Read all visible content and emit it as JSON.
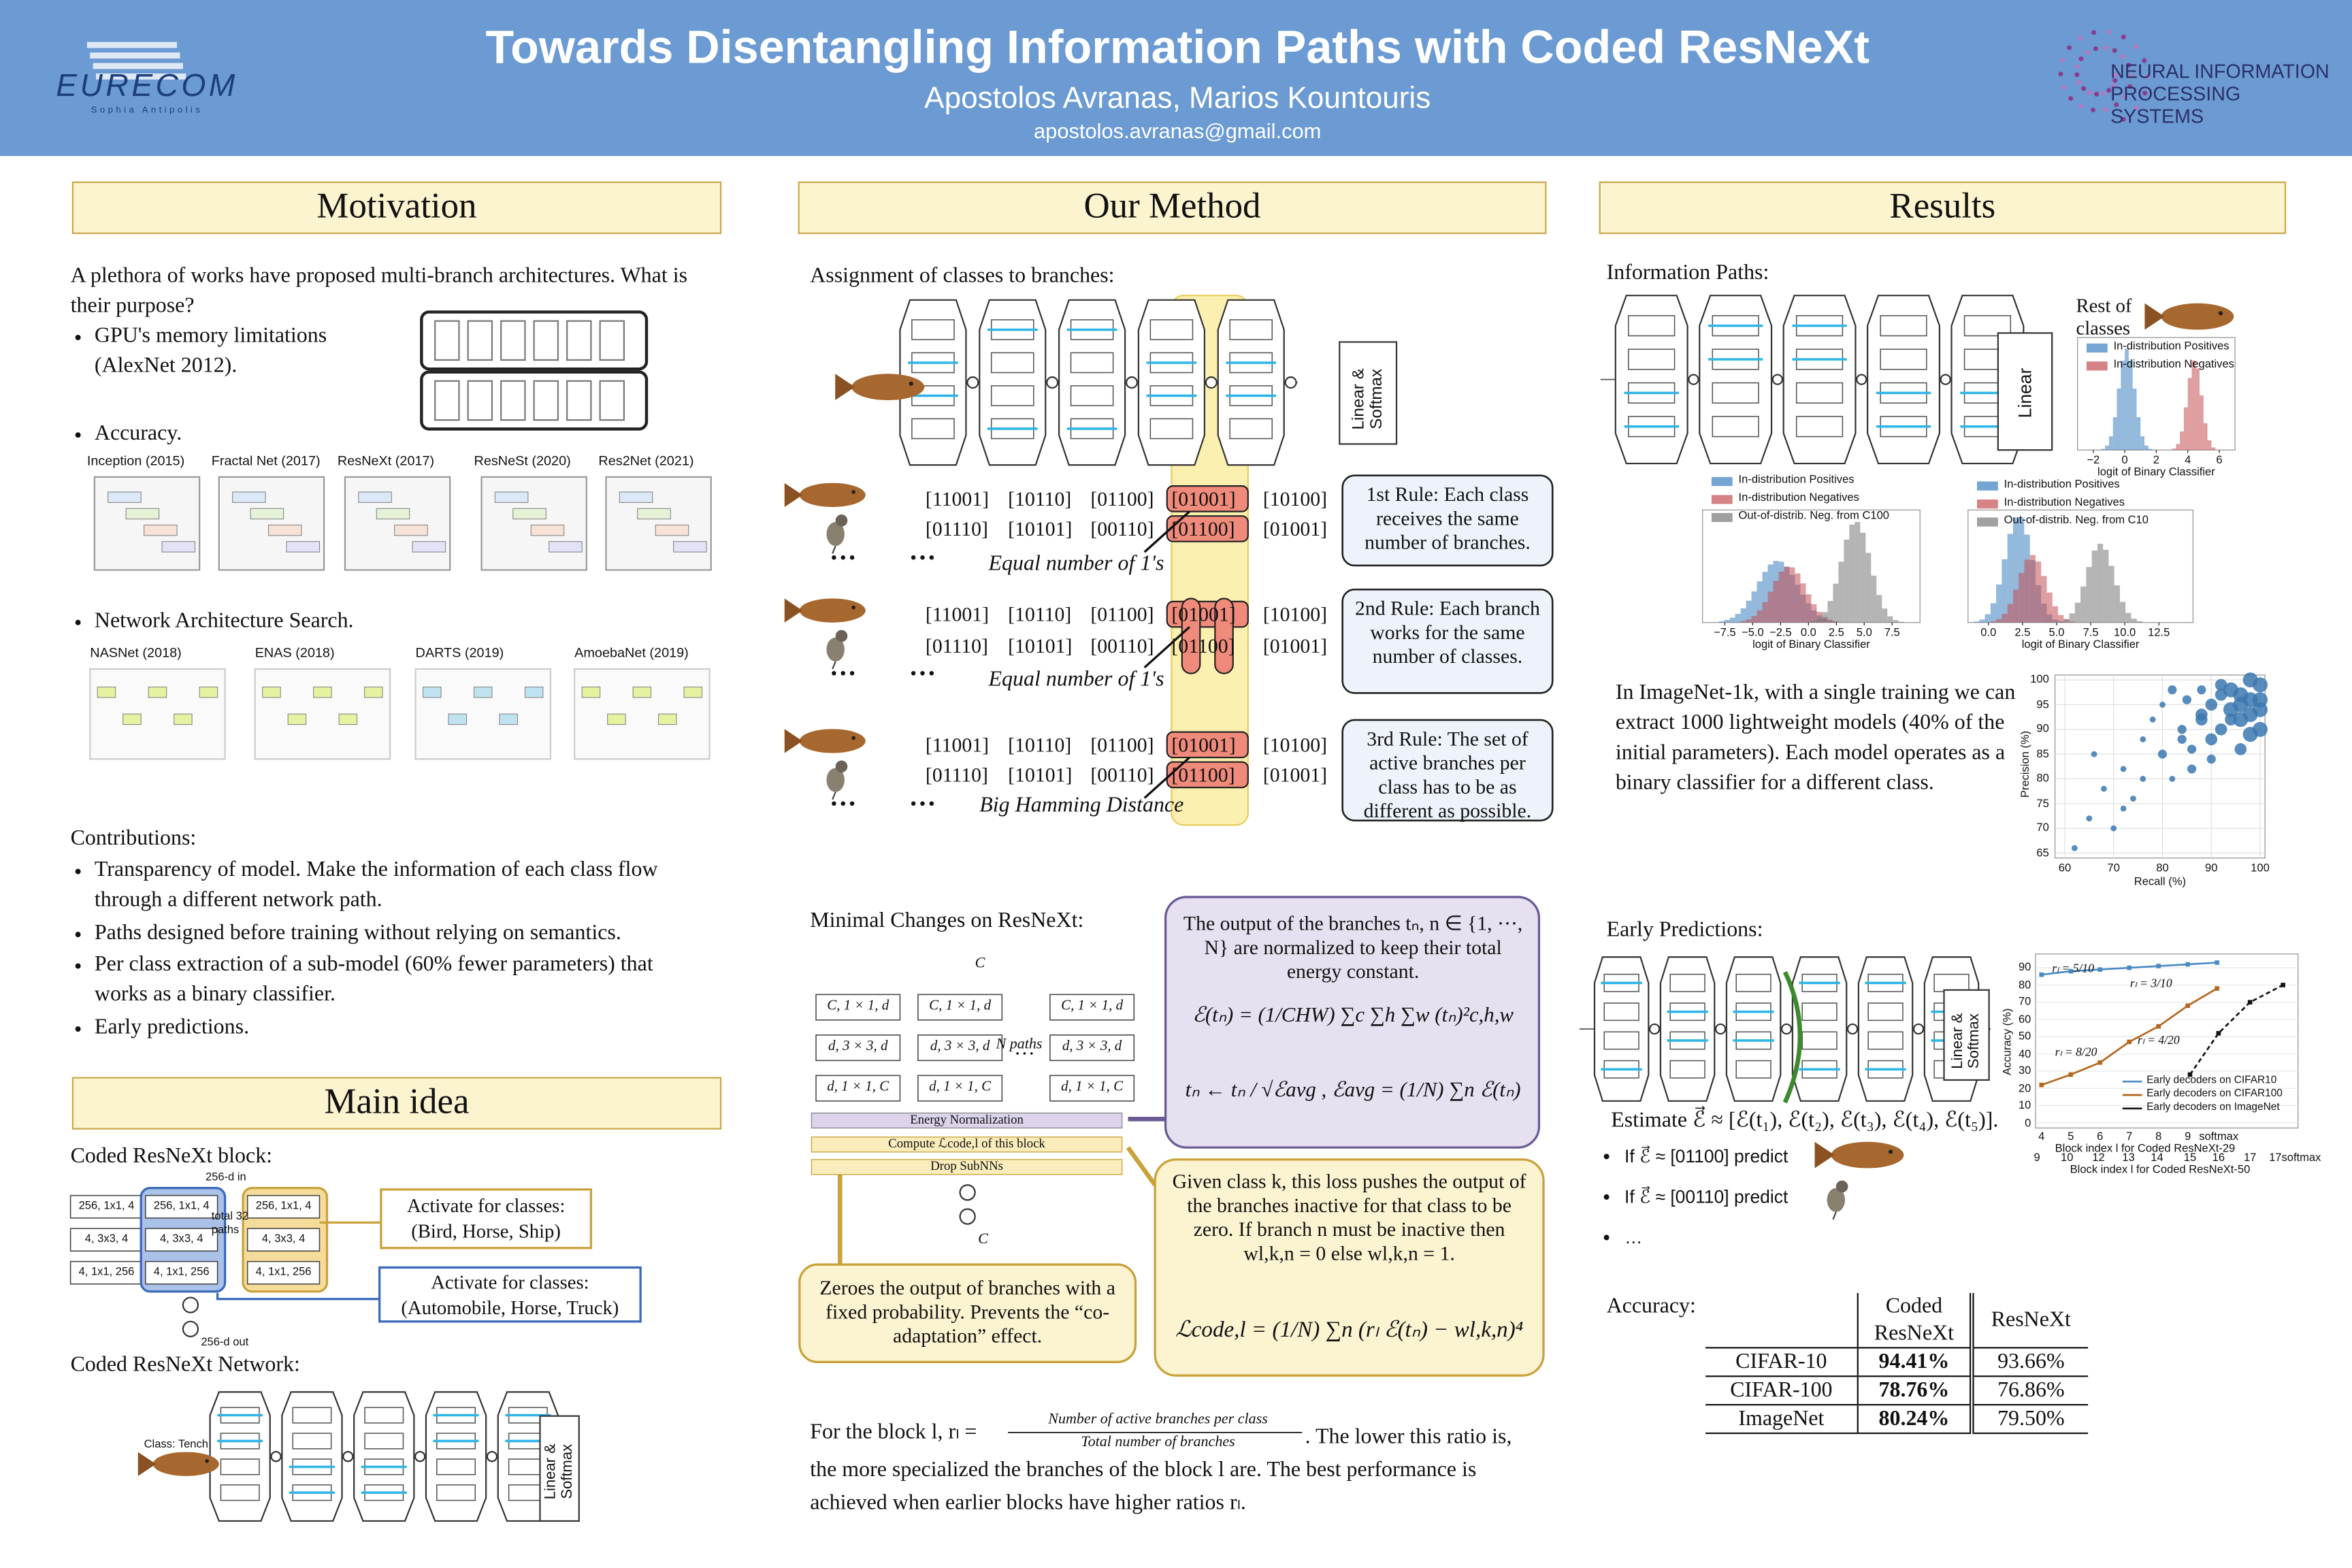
{
  "header": {
    "title": "Towards Disentangling Information Paths with Coded ResNeXt",
    "authors": "Apostolos Avranas, Marios Kountouris",
    "email": "apostolos.avranas@gmail.com",
    "left_logo": "EURECOM",
    "left_logo_sub": "Sophia Antipolis",
    "right_logo": [
      "NEURAL INFORMATION",
      "PROCESSING SYSTEMS"
    ]
  },
  "motivation": {
    "heading": "Motivation",
    "intro": "A plethora of works have proposed multi-branch architectures. What is their purpose?",
    "bullets": [
      "GPU's memory limitations (AlexNet 2012).",
      "Accuracy.",
      "Network Architecture Search."
    ],
    "accuracy_nets": [
      "Inception (2015)",
      "Fractal Net (2017)",
      "ResNeXt (2017)",
      "ResNeSt (2020)",
      "Res2Net (2021)"
    ],
    "nas_nets": [
      "NASNet (2018)",
      "ENAS (2018)",
      "DARTS (2019)",
      "AmoebaNet (2019)"
    ],
    "contributions_heading": "Contributions:",
    "contributions": [
      "Transparency of model.  Make the information of each class flow through a different network path.",
      "Paths designed before training without relying on semantics.",
      "Per class extraction of a sub-model (60% fewer parameters) that works as a binary classifier.",
      "Early predictions."
    ]
  },
  "main_idea": {
    "heading": "Main idea",
    "block_label": "Coded ResNeXt block:",
    "block_input": "256-d in",
    "block_output": "256-d out",
    "block_cells": [
      "256, 1x1, 4",
      "4, 3x3, 4",
      "4, 1x1, 256"
    ],
    "paths_label": "total 32 paths",
    "activate": [
      "Activate for classes: (Bird, Horse, Ship)",
      "Activate for classes: (Automobile, Horse, Truck)"
    ],
    "network_label": "Coded ResNeXt  Network:",
    "class_label": "Class: Tench",
    "head_label": "Linear & Softmax"
  },
  "method": {
    "heading": "Our Method",
    "assign_label": "Assignment of classes to branches:",
    "head_label": "Linear & Softmax",
    "sets": [
      {
        "rows": [
          [
            "[11001]",
            "[10110]",
            "[01100]",
            "[01001]",
            "[10100]"
          ],
          [
            "[01110]",
            "[10101]",
            "[00110]",
            "[01100]",
            "[01001]"
          ]
        ],
        "note": "Equal number of 1's",
        "rule": "1st Rule: Each class receives the same number of branches."
      },
      {
        "rows": [
          [
            "[11001]",
            "[10110]",
            "[01100]",
            "[01001]",
            "[10100]"
          ],
          [
            "[01110]",
            "[10101]",
            "[00110]",
            "[01100]",
            "[01001]"
          ]
        ],
        "note": "Equal number of 1's",
        "rule": "2nd Rule: Each branch works for the same number of classes."
      },
      {
        "rows": [
          [
            "[11001]",
            "[10110]",
            "[01100]",
            "[01001]",
            "[10100]"
          ],
          [
            "[01110]",
            "[10101]",
            "[00110]",
            "[01100]",
            "[01001]"
          ]
        ],
        "note": "Big Hamming Distance",
        "rule": "3rd Rule: The set of active branches per class has to be as different as possible."
      }
    ],
    "ellipsis": "…",
    "changes_label": "Minimal Changes on ResNeXt:",
    "diagram": {
      "input": "C",
      "output": "C",
      "cells": [
        "C, 1 × 1, d",
        "d, 3 × 3, d",
        "d, 1 × 1, C"
      ],
      "paths": "N paths",
      "energy": "Energy Normalization",
      "compute": "Compute ℒcode,l of this block",
      "drop": "Drop SubNNs"
    },
    "energy_text": "The output of the branches tₙ, n ∈ {1, ⋯, N} are normalized to keep their total energy constant.",
    "energy_formula_1": "ℰ(tₙ) = (1/CHW) ∑c ∑h ∑w (tₙ)²c,h,w",
    "energy_formula_2": "tₙ ← tₙ / √ℰavg ,  ℰavg = (1/N) ∑n ℰ(tₙ)",
    "loss_text": "Given class k, this loss pushes the output of the branches inactive for that class to be zero. If branch n must be inactive then wl,k,n = 0 else wl,k,n = 1.",
    "loss_formula": "ℒcode,l = (1/N) ∑n (rₗ ℰ(tₙ) − wl,k,n)⁴",
    "drop_text": "Zeroes the output of branches with a fixed probability. Prevents the “co-adaptation” effect.",
    "ratio_prefix": "For the block l, rₗ =",
    "ratio_num": "Number of active branches per class",
    "ratio_den": "Total number of branches",
    "ratio_suffix": ". The lower this ratio is, the more specialized the branches of the block l are. The best performance is achieved when earlier blocks have higher ratios rₗ."
  },
  "results": {
    "heading": "Results",
    "paths_label": "Information Paths:",
    "head_label": "Linear",
    "rest_label": "Rest of classes",
    "hist_small": {
      "legend": [
        "In-distribution Positives",
        "In-distribution Negatives"
      ],
      "xlabel": "logit of Binary Classifier",
      "xlim": [
        -3,
        7
      ],
      "xticks": [
        {
          "value": -2,
          "label": "−2"
        },
        0,
        2,
        4,
        6
      ]
    },
    "hist_c10": {
      "legend": [
        "In-distribution Positives",
        "In-distribution Negatives",
        "Out-of-distrib. Neg. from C100"
      ],
      "xlabel": "logit of Binary Classifier",
      "xlim": [
        -9.5,
        10
      ],
      "xticks": [
        {
          "value": -7.5,
          "label": "−7.5"
        },
        {
          "value": -5,
          "label": "−5.0"
        },
        {
          "value": -2.5,
          "label": "−2.5"
        },
        {
          "value": 0,
          "label": "0.0"
        },
        {
          "value": 2.5,
          "label": "2.5"
        },
        {
          "value": 5,
          "label": "5.0"
        },
        {
          "value": 7.5,
          "label": "7.5"
        }
      ]
    },
    "hist_c100": {
      "legend": [
        "In-distribution Positives",
        "In-distribution Negatives",
        "Out-of-distrib. Neg. from C10"
      ],
      "xlabel": "logit of Binary Classifier",
      "xlim": [
        -1.5,
        15
      ],
      "xticks": [
        {
          "value": 0,
          "label": "0.0"
        },
        {
          "value": 2.5,
          "label": "2.5"
        },
        {
          "value": 5,
          "label": "5.0"
        },
        {
          "value": 7.5,
          "label": "7.5"
        },
        {
          "value": 10,
          "label": "10.0"
        },
        {
          "value": 12.5,
          "label": "12.5"
        }
      ]
    },
    "imagenet_text": "In ImageNet-1k, with a single training we can extract 1000 lightweight models (40% of the initial parameters). Each model operates as a binary classifier for a different class.",
    "scatter": {
      "type": "scatter",
      "color": "#3b78b0",
      "xlabel": "Recall (%)",
      "ylabel": "Precision (%)",
      "xlim": [
        58,
        101
      ],
      "ylim": [
        64,
        101
      ],
      "xticks": [
        60,
        70,
        80,
        90,
        100
      ],
      "yticks": [
        65,
        70,
        75,
        80,
        85,
        90,
        95,
        100
      ],
      "x": [
        62,
        65,
        68,
        70,
        72,
        74,
        76,
        78,
        80,
        80,
        82,
        84,
        85,
        86,
        88,
        88,
        90,
        90,
        92,
        92,
        94,
        94,
        96,
        96,
        98,
        98,
        100,
        100,
        84,
        86,
        90,
        94,
        96,
        98,
        100,
        76,
        72,
        66,
        92,
        96,
        100,
        88,
        82,
        98
      ],
      "y": [
        66,
        72,
        78,
        70,
        82,
        76,
        88,
        92,
        85,
        95,
        80,
        90,
        96,
        86,
        92,
        98,
        88,
        95,
        90,
        99,
        94,
        98,
        92,
        97,
        96,
        100,
        94,
        99,
        88,
        82,
        84,
        92,
        95,
        89,
        96,
        80,
        74,
        85,
        97,
        86,
        90,
        93,
        98,
        93
      ],
      "sizes": [
        2,
        2,
        2,
        2,
        2,
        2,
        2,
        2,
        3,
        2,
        2,
        3,
        3,
        3,
        4,
        3,
        4,
        4,
        4,
        4,
        5,
        5,
        5,
        5,
        5,
        5,
        5,
        5,
        3,
        3,
        3,
        4,
        5,
        5,
        5,
        2,
        2,
        2,
        4,
        4,
        5,
        4,
        3,
        5
      ]
    },
    "early_label": "Early Predictions:",
    "head_label_early": "Linear & Softmax",
    "estimate": "Estimate ℰ⃗ ≈ [ℰ(t₁), ℰ(t₂), ℰ(t₃), ℰ(t₄), ℰ(t₅)].",
    "predict": [
      "If ℰ⃗ ≈ [01100] predict",
      "If ℰ⃗ ≈ [00110] predict",
      "…"
    ],
    "early_chart": {
      "type": "line",
      "ylabel": "Accuracy (%)",
      "xlabel_top": "Block index l for Coded ResNeXt-29",
      "xlabel_bottom": "Block index l for Coded ResNeXt-50",
      "categories_top": [
        "4",
        "5",
        "6",
        "7",
        "8",
        "9",
        "softmax"
      ],
      "categories_bottom": [
        "9",
        "10",
        "12",
        "13",
        "14",
        "15",
        "16",
        "17",
        "17softmax"
      ],
      "ylim": [
        -3,
        98
      ],
      "yticks": [
        0,
        10,
        20,
        30,
        40,
        50,
        60,
        70,
        80,
        90
      ],
      "series": [
        {
          "name": "Early decoders on CIFAR10",
          "color": "#4a8ac4",
          "axis": "top",
          "values": [
            86,
            88,
            89,
            90,
            91,
            92,
            93
          ]
        },
        {
          "name": "Early decoders on CIFAR100",
          "color": "#b5651d",
          "axis": "top",
          "values": [
            22,
            28,
            35,
            47,
            56,
            68,
            78
          ]
        },
        {
          "name": "Early decoders on ImageNet",
          "color": "#111111",
          "axis": "bottom",
          "values": [
            null,
            null,
            null,
            null,
            null,
            28,
            52,
            70,
            80
          ]
        }
      ],
      "annotations": [
        "rₗ = 5/10",
        "rₗ = 3/10",
        "rₗ = 8/20",
        "rₗ = 4/20"
      ]
    },
    "accuracy_label": "Accuracy:",
    "table": {
      "columns": [
        "Coded ResNeXt",
        "ResNeXt"
      ],
      "rows": [
        [
          "CIFAR-10",
          "94.41%",
          "93.66%"
        ],
        [
          "CIFAR-100",
          "78.76%",
          "76.86%"
        ],
        [
          "ImageNet",
          "80.24%",
          "79.50%"
        ]
      ]
    }
  }
}
